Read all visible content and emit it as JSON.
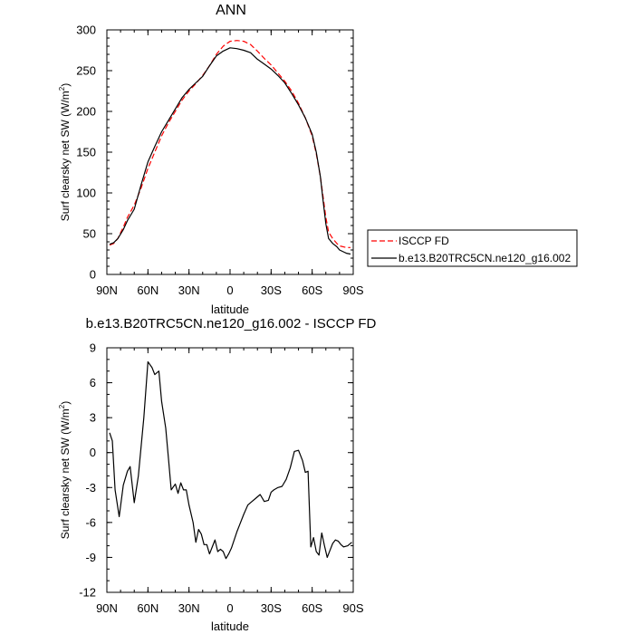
{
  "chart_data": [
    {
      "type": "line",
      "title": "ANN",
      "xlabel": "latitude",
      "ylabel_main": "Surf clearsky net SW (W/m",
      "ylabel_sup": "2",
      "ylabel_end": ")",
      "xlim": [
        90,
        -90
      ],
      "ylim": [
        0,
        300
      ],
      "xticks": [
        90,
        60,
        30,
        0,
        -30,
        -60,
        -90
      ],
      "xtick_labels": [
        "90N",
        "60N",
        "30N",
        "0",
        "30S",
        "60S",
        "90S"
      ],
      "yticks": [
        0,
        50,
        100,
        150,
        200,
        250,
        300
      ],
      "ytick_labels": [
        "0",
        "50",
        "100",
        "150",
        "200",
        "250",
        "300"
      ],
      "legend": [
        "ISCCP FD",
        "b.e13.B20TRC5CN.ne120_g16.002"
      ],
      "series": [
        {
          "name": "ISCCP FD",
          "color": "#ff0000",
          "dash": "dashed",
          "x": [
            88,
            85,
            82,
            78,
            75,
            70,
            65,
            60,
            55,
            50,
            45,
            40,
            35,
            30,
            25,
            20,
            15,
            10,
            5,
            0,
            -5,
            -10,
            -15,
            -20,
            -25,
            -30,
            -35,
            -40,
            -45,
            -50,
            -55,
            -60,
            -63,
            -66,
            -68,
            -70,
            -72,
            -75,
            -78,
            -80,
            -85,
            -88
          ],
          "y": [
            36,
            38,
            44,
            58,
            70,
            85,
            106,
            130,
            150,
            170,
            186,
            200,
            214,
            225,
            234,
            244,
            256,
            270,
            280,
            286,
            287,
            286,
            282,
            274,
            265,
            257,
            247,
            237,
            225,
            210,
            192,
            170,
            148,
            120,
            95,
            70,
            52,
            44,
            38,
            35,
            33,
            33
          ]
        },
        {
          "name": "b.e13.B20TRC5CN.ne120_g16.002",
          "color": "#000000",
          "dash": "solid",
          "x": [
            88,
            85,
            82,
            78,
            75,
            70,
            65,
            60,
            55,
            50,
            45,
            40,
            35,
            30,
            25,
            20,
            15,
            10,
            5,
            0,
            -5,
            -10,
            -15,
            -20,
            -25,
            -30,
            -35,
            -40,
            -45,
            -50,
            -55,
            -60,
            -63,
            -66,
            -68,
            -70,
            -72,
            -75,
            -78,
            -80,
            -85,
            -88
          ],
          "y": [
            37,
            39,
            44,
            55,
            66,
            80,
            110,
            138,
            157,
            175,
            189,
            203,
            217,
            227,
            235,
            243,
            256,
            268,
            274,
            278,
            277,
            275,
            272,
            264,
            258,
            252,
            244,
            235,
            222,
            208,
            192,
            172,
            150,
            120,
            90,
            62,
            44,
            38,
            34,
            30,
            26,
            25
          ]
        }
      ]
    },
    {
      "type": "line",
      "title": "b.e13.B20TRC5CN.ne120_g16.002 - ISCCP FD",
      "xlabel": "latitude",
      "ylabel_main": "Surf clearsky net SW (W/m",
      "ylabel_sup": "2",
      "ylabel_end": ")",
      "xlim": [
        90,
        -90
      ],
      "ylim": [
        -12,
        9
      ],
      "xticks": [
        90,
        60,
        30,
        0,
        -30,
        -60,
        -90
      ],
      "xtick_labels": [
        "90N",
        "60N",
        "30N",
        "0",
        "30S",
        "60S",
        "90S"
      ],
      "yticks": [
        -12,
        -9,
        -6,
        -3,
        0,
        3,
        6,
        9
      ],
      "ytick_labels": [
        "-12",
        "-9",
        "-6",
        "-3",
        "0",
        "3",
        "6",
        "9"
      ],
      "series": [
        {
          "name": "b.e13.B20TRC5CN.ne120_g16.002 - ISCCP FD",
          "color": "#000000",
          "dash": "solid",
          "x": [
            88,
            86,
            84,
            81,
            78,
            75,
            73,
            70,
            67,
            63,
            60,
            57,
            55,
            52,
            50,
            47,
            45,
            43,
            40,
            38,
            36,
            34,
            32,
            30,
            27,
            25,
            23,
            21,
            19,
            17,
            15,
            13,
            11,
            9,
            7,
            5,
            3,
            1,
            -1,
            -3,
            -5,
            -7,
            -10,
            -13,
            -16,
            -19,
            -22,
            -25,
            -28,
            -30,
            -32,
            -35,
            -38,
            -41,
            -44,
            -47,
            -50,
            -53,
            -55,
            -57,
            -59,
            -61,
            -63,
            -65,
            -67,
            -69,
            -71,
            -73,
            -75,
            -77,
            -79,
            -81,
            -83,
            -86,
            -89
          ],
          "y": [
            1.7,
            1.0,
            -3.2,
            -5.5,
            -2.8,
            -1.6,
            -1.2,
            -4.3,
            -2.0,
            3.0,
            7.8,
            7.3,
            6.7,
            7.0,
            4.4,
            2.1,
            -0.5,
            -3.2,
            -2.7,
            -3.5,
            -2.6,
            -3.2,
            -3.2,
            -4.5,
            -6.0,
            -7.7,
            -6.6,
            -7.0,
            -7.9,
            -7.9,
            -8.7,
            -8.1,
            -7.5,
            -8.5,
            -8.3,
            -8.5,
            -9.1,
            -8.7,
            -8.2,
            -7.5,
            -6.8,
            -6.2,
            -5.3,
            -4.5,
            -4.2,
            -3.9,
            -3.6,
            -4.2,
            -4.1,
            -3.4,
            -3.2,
            -3.0,
            -2.9,
            -2.3,
            -1.3,
            0.1,
            0.2,
            -0.7,
            -1.7,
            -1.6,
            -8.1,
            -7.3,
            -8.5,
            -8.8,
            -6.9,
            -8.0,
            -9.0,
            -8.4,
            -7.8,
            -7.5,
            -7.6,
            -7.9,
            -8.1,
            -8.0,
            -7.7
          ]
        }
      ]
    }
  ]
}
